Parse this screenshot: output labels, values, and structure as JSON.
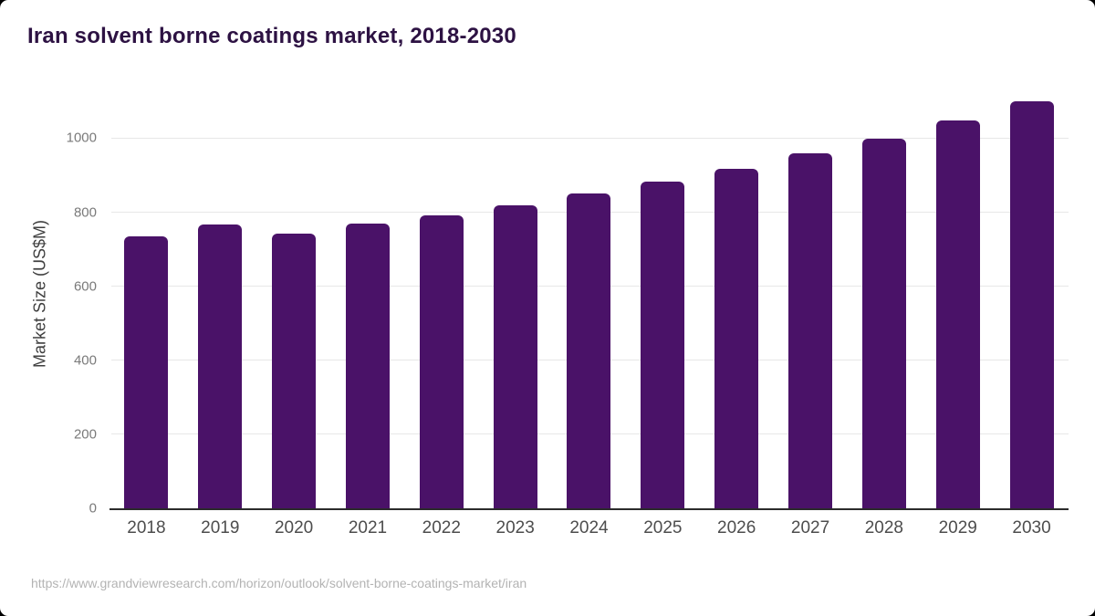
{
  "title": "Iran solvent borne coatings market, 2018-2030",
  "source_url": "https://www.grandviewresearch.com/horizon/outlook/solvent-borne-coatings-market/iran",
  "colors": {
    "bar": "#4a1268",
    "title_text": "#2d1243",
    "axis_line": "#2b2b2b",
    "gridline": "#e7e7e7",
    "tick_text": "#7a7a7a",
    "x_label_text": "#4d4d4d",
    "source_text": "#b3b3b3",
    "background": "#ffffff"
  },
  "chart_data": {
    "type": "bar",
    "title": "Iran solvent borne coatings market, 2018-2030",
    "categories": [
      "2018",
      "2019",
      "2020",
      "2021",
      "2022",
      "2023",
      "2024",
      "2025",
      "2026",
      "2027",
      "2028",
      "2029",
      "2030"
    ],
    "values": [
      734,
      766,
      742,
      770,
      792,
      819,
      850,
      882,
      918,
      959,
      1000,
      1048,
      1100
    ],
    "xlabel": "",
    "ylabel": "Market Size (US$M)",
    "ylim": [
      0,
      1127
    ],
    "yticks": [
      0,
      200,
      400,
      600,
      800,
      1000
    ],
    "grid": "horizontal-only",
    "legend": "none",
    "bar_color": "#4a1268"
  }
}
